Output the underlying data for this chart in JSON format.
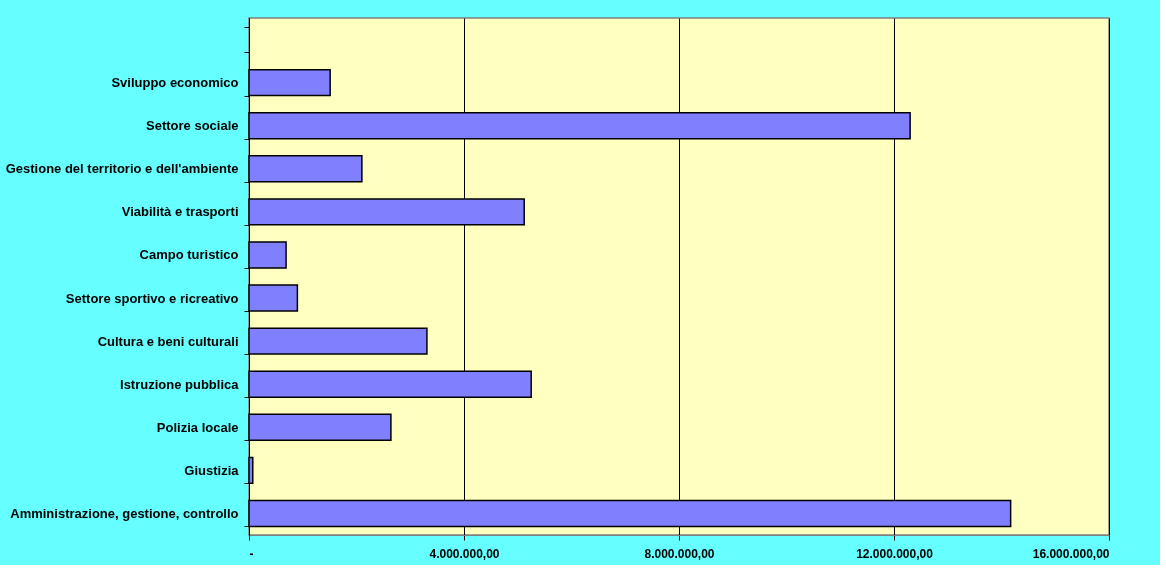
{
  "chart_data": {
    "type": "bar",
    "orientation": "horizontal",
    "categories": [
      null,
      "Sviluppo economico",
      "Settore sociale",
      "Gestione del territorio e dell'ambiente",
      "Viabilità e trasporti",
      "Campo turistico",
      "Settore sportivo e ricreativo",
      "Cultura e beni culturali",
      "Istruzione pubblica",
      "Polizia locale",
      "Giustizia",
      "Amministrazione, gestione, controllo"
    ],
    "values": [
      null,
      1510000,
      12300000,
      2100000,
      5120000,
      690000,
      900000,
      3310000,
      5250000,
      2640000,
      70000,
      14170000
    ],
    "color": "#8080ff",
    "xlim": [
      0,
      16000000
    ],
    "xticks": [
      {
        "value": 0,
        "label": "-"
      },
      {
        "value": 4000000,
        "label": "4.000.000,00"
      },
      {
        "value": 8000000,
        "label": "8.000.000,00"
      },
      {
        "value": 12000000,
        "label": "12.000.000,00"
      },
      {
        "value": 16000000,
        "label": "16.000.000,00"
      }
    ],
    "grid": "x"
  }
}
